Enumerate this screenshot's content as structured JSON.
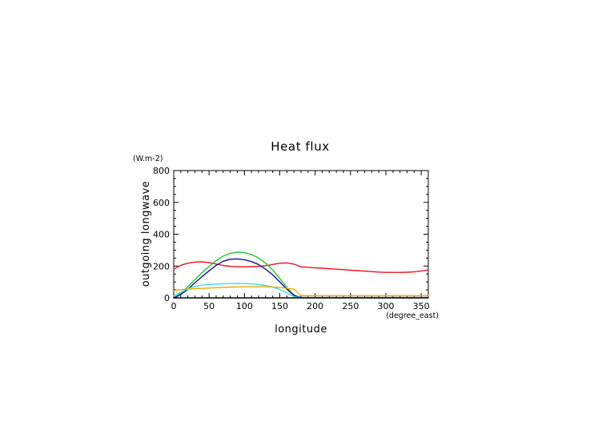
{
  "chart_data": {
    "type": "line",
    "title": "Heat flux",
    "xlabel": "longitude",
    "ylabel": "outgoing longwave",
    "x_unit": "(degree_east)",
    "y_unit": "(W.m-2)",
    "xlim": [
      0,
      360
    ],
    "ylim": [
      0,
      800
    ],
    "x_ticks": [
      0,
      50,
      100,
      150,
      200,
      250,
      300,
      350
    ],
    "y_ticks": [
      0,
      200,
      400,
      600,
      800
    ],
    "x_minor_step": 10,
    "y_minor_step": 50,
    "grid": false,
    "legend": "none",
    "x": [
      0,
      10,
      20,
      30,
      40,
      50,
      60,
      70,
      80,
      90,
      100,
      110,
      120,
      130,
      140,
      150,
      160,
      170,
      180,
      190,
      200,
      210,
      220,
      230,
      240,
      250,
      260,
      270,
      280,
      290,
      300,
      310,
      320,
      330,
      340,
      350,
      360
    ],
    "series": [
      {
        "color": "#e8141c",
        "values": [
          180,
          205,
          218,
          225,
          226,
          222,
          213,
          204,
          198,
          195,
          195,
          196,
          198,
          202,
          210,
          218,
          220,
          212,
          195,
          192,
          189,
          186,
          183,
          180,
          177,
          174,
          171,
          168,
          165,
          162,
          160,
          160,
          160,
          161,
          164,
          169,
          175
        ]
      },
      {
        "color": "#1ec832",
        "values": [
          0,
          28,
          70,
          115,
          158,
          198,
          234,
          262,
          280,
          287,
          285,
          272,
          250,
          218,
          175,
          122,
          65,
          18,
          2,
          2,
          2,
          2,
          2,
          2,
          2,
          2,
          2,
          2,
          2,
          2,
          2,
          2,
          2,
          2,
          2,
          2,
          2
        ]
      },
      {
        "color": "#1a0f96",
        "values": [
          0,
          20,
          55,
          95,
          133,
          170,
          205,
          230,
          243,
          245,
          240,
          228,
          210,
          180,
          145,
          100,
          55,
          15,
          2,
          2,
          2,
          2,
          2,
          2,
          2,
          2,
          2,
          2,
          2,
          2,
          2,
          2,
          2,
          2,
          2,
          2,
          2
        ]
      },
      {
        "color": "#3cdcf0",
        "values": [
          12,
          35,
          58,
          72,
          80,
          84,
          87,
          89,
          90,
          91,
          90,
          88,
          84,
          78,
          68,
          52,
          30,
          8,
          1,
          1,
          1,
          1,
          1,
          1,
          1,
          1,
          1,
          1,
          1,
          1,
          1,
          1,
          1,
          1,
          1,
          1,
          1
        ]
      },
      {
        "color": "#f0a800",
        "values": [
          45,
          52,
          56,
          58,
          60,
          62,
          64,
          66,
          68,
          69,
          70,
          70,
          70,
          70,
          68,
          65,
          60,
          55,
          15,
          14,
          14,
          14,
          14,
          14,
          14,
          14,
          14,
          14,
          14,
          14,
          14,
          14,
          14,
          14,
          14,
          14,
          14
        ]
      },
      {
        "color": "#000000",
        "values": [
          0,
          0,
          0,
          0,
          0,
          0,
          0,
          0,
          0,
          0,
          0,
          0,
          0,
          0,
          0,
          0,
          0,
          0,
          0,
          0,
          0,
          0,
          0,
          0,
          0,
          0,
          0,
          0,
          0,
          0,
          0,
          0,
          0,
          0,
          0,
          0,
          0
        ]
      }
    ]
  }
}
